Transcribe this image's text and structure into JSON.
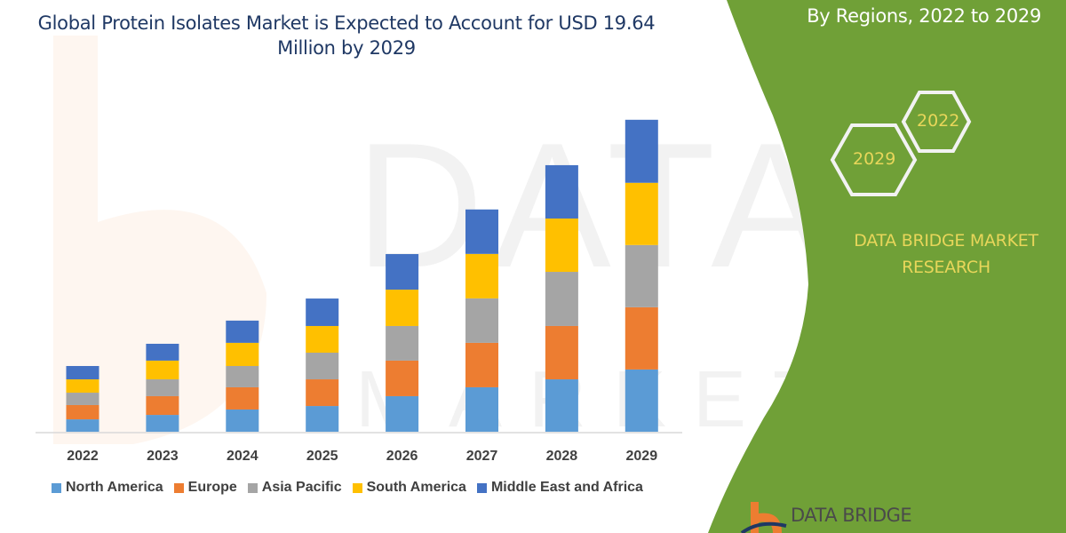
{
  "header": {
    "title": "Global Protein Isolates Market is Expected to Account for USD 19.64 Million by 2029",
    "subtitle": "By Regions, 2022 to 2029"
  },
  "sidebar": {
    "hex_labels": [
      "2022",
      "2029"
    ],
    "brand_line1": "DATA BRIDGE MARKET",
    "brand_line2": "RESEARCH",
    "background_color": "#70a037",
    "text_color": "#e8d65a"
  },
  "logo": {
    "text": "DATA BRIDGE",
    "watermark": "DATA BRIDGE MARKET RESEARCH"
  },
  "chart_data": {
    "type": "bar",
    "stacked": true,
    "title": "",
    "xlabel": "",
    "ylabel": "",
    "y_axis_shown": false,
    "grid": false,
    "legend_position": "bottom",
    "categories": [
      "2022",
      "2023",
      "2024",
      "2025",
      "2026",
      "2027",
      "2028",
      "2029"
    ],
    "series": [
      {
        "name": "North America",
        "color": "#5b9bd5",
        "values": [
          0.78,
          1.06,
          1.4,
          1.62,
          2.24,
          2.8,
          3.3,
          3.92
        ]
      },
      {
        "name": "Europe",
        "color": "#ed7d31",
        "values": [
          0.9,
          1.18,
          1.4,
          1.68,
          2.24,
          2.8,
          3.36,
          3.92
        ]
      },
      {
        "name": "Asia Pacific",
        "color": "#a5a5a5",
        "values": [
          0.78,
          1.06,
          1.34,
          1.68,
          2.18,
          2.8,
          3.41,
          3.92
        ]
      },
      {
        "name": "South America",
        "color": "#ffc000",
        "values": [
          0.84,
          1.18,
          1.46,
          1.68,
          2.29,
          2.8,
          3.36,
          3.92
        ]
      },
      {
        "name": "Middle East and Africa",
        "color": "#4472c4",
        "values": [
          0.84,
          1.06,
          1.4,
          1.73,
          2.24,
          2.8,
          3.36,
          3.97
        ]
      }
    ]
  }
}
